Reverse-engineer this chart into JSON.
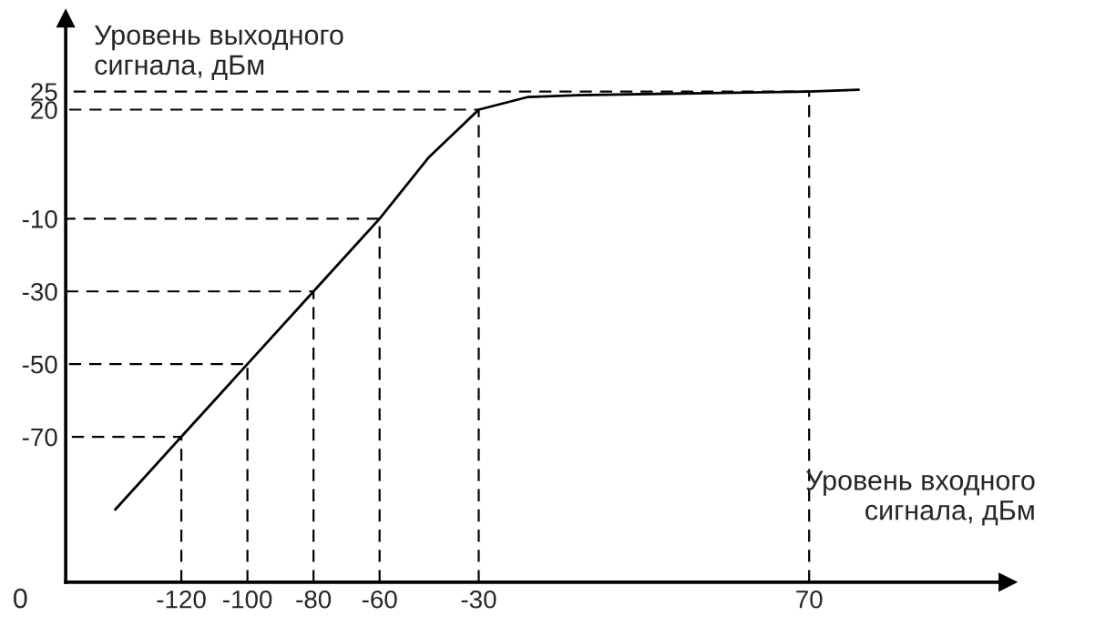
{
  "chart_data": {
    "type": "line",
    "xlabel": "Уровень входного\nсигнала, дБм",
    "ylabel": "Уровень выходного\nсигнала, дБм",
    "x": [
      -140,
      -120,
      -100,
      -80,
      -60,
      -45,
      -30,
      -15,
      0,
      70,
      85
    ],
    "series": [
      {
        "color": "#000000",
        "values": [
          -90,
          -70,
          -50,
          -30,
          -10,
          7,
          20,
          23.5,
          24,
          25,
          25.5
        ]
      },
      {
        "color": "#000000",
        "line_style": "dashed",
        "x": [
          -120,
          -120,
          -155
        ],
        "values": [
          -110,
          -70,
          -70
        ]
      },
      {
        "color": "#000000",
        "line_style": "dashed",
        "x": [
          -100,
          -100,
          -155
        ],
        "values": [
          -110,
          -50,
          -50
        ]
      },
      {
        "color": "#000000",
        "line_style": "dashed",
        "x": [
          -80,
          -80,
          -155
        ],
        "values": [
          -110,
          -30,
          -30
        ]
      },
      {
        "color": "#000000",
        "line_style": "dashed",
        "x": [
          -60,
          -60,
          -155
        ],
        "values": [
          -110,
          -10,
          -10
        ]
      },
      {
        "color": "#000000",
        "line_style": "dashed",
        "x": [
          -30,
          -30,
          -155
        ],
        "values": [
          -110,
          20,
          20
        ]
      },
      {
        "color": "#000000",
        "line_style": "dashed",
        "x": [
          70,
          70,
          -155
        ],
        "values": [
          -110,
          25,
          25
        ]
      }
    ],
    "xlim": [
      -155,
      130
    ],
    "ylim": [
      -110,
      45
    ],
    "xticks": [
      -120,
      -100,
      -80,
      -60,
      -30,
      70
    ],
    "yticks": [
      -70,
      -50,
      -30,
      -10,
      20,
      25
    ],
    "annotations": [
      "0"
    ],
    "marker": "none",
    "line_style": "solid"
  }
}
